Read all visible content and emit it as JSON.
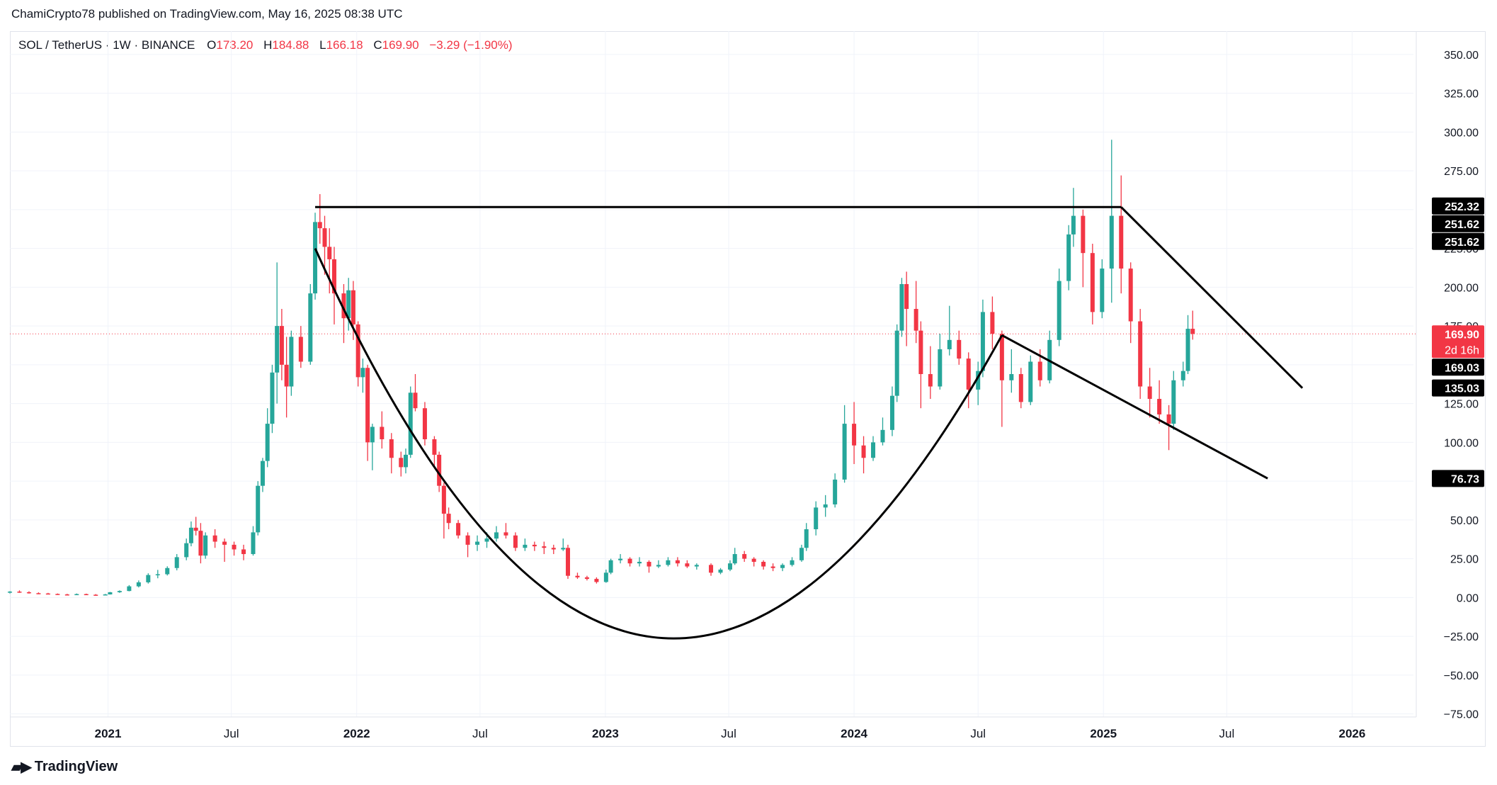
{
  "publisher": "ChamiCrypto78 published on TradingView.com, May 16, 2025 08:38 UTC",
  "legend": {
    "symbol": "SOL / TetherUS · 1W · BINANCE",
    "open_label": "O",
    "open": "173.20",
    "high_label": "H",
    "high": "184.88",
    "low_label": "L",
    "low": "166.18",
    "close_label": "C",
    "close": "169.90",
    "change": "−3.29 (−1.90%)"
  },
  "brand": "TradingView",
  "colors": {
    "up": "#26a69a",
    "down": "#f23645",
    "drawing": "#000000",
    "axis_text": "#131722"
  },
  "chart_data": {
    "type": "candlestick",
    "interval": "1W",
    "yaxis": {
      "ticks": [
        "350.00",
        "325.00",
        "300.00",
        "275.00",
        "250.00",
        "225.00",
        "200.00",
        "175.00",
        "150.00",
        "125.00",
        "100.00",
        "75.00",
        "50.00",
        "25.00",
        "0.00",
        "−25.00",
        "−50.00",
        "−75.00"
      ],
      "range": [
        -77,
        365
      ]
    },
    "xaxis": {
      "ticks": [
        {
          "label": "2021",
          "date": "2021-01-01"
        },
        {
          "label": "Jul",
          "date": "2021-07-01"
        },
        {
          "label": "2022",
          "date": "2022-01-01"
        },
        {
          "label": "Jul",
          "date": "2022-07-01"
        },
        {
          "label": "2023",
          "date": "2023-01-01"
        },
        {
          "label": "Jul",
          "date": "2023-07-01"
        },
        {
          "label": "2024",
          "date": "2024-01-01"
        },
        {
          "label": "Jul",
          "date": "2024-07-01"
        },
        {
          "label": "2025",
          "date": "2025-01-01"
        },
        {
          "label": "Jul",
          "date": "2025-07-01"
        },
        {
          "label": "2026",
          "date": "2026-01-01"
        }
      ],
      "range": [
        "2020-08-10",
        "2026-04-01"
      ]
    },
    "price_tags": [
      {
        "value": 252.32,
        "text": "252.32",
        "color": "#000000"
      },
      {
        "value": 251.62,
        "text": "251.62",
        "color": "#000000"
      },
      {
        "value": 251.62,
        "text": "251.62",
        "color": "#000000"
      },
      {
        "value": 169.9,
        "text": "169.90",
        "sub": "2d 16h",
        "color": "#f23645"
      },
      {
        "value": 169.03,
        "text": "169.03",
        "color": "#000000"
      },
      {
        "value": 135.03,
        "text": "135.03",
        "color": "#000000"
      },
      {
        "value": 76.73,
        "text": "76.73",
        "color": "#000000"
      }
    ],
    "current_price": 169.9,
    "candles": [
      [
        "2020-08-10",
        3.2,
        4.1,
        2.6,
        3.8
      ],
      [
        "2020-08-24",
        3.8,
        4.6,
        3.0,
        3.4
      ],
      [
        "2020-09-07",
        3.4,
        4.0,
        2.5,
        2.8
      ],
      [
        "2020-09-21",
        2.8,
        3.3,
        2.2,
        2.6
      ],
      [
        "2020-10-05",
        2.6,
        3.0,
        2.1,
        2.3
      ],
      [
        "2020-10-19",
        2.3,
        2.6,
        1.8,
        2.0
      ],
      [
        "2020-11-02",
        2.0,
        2.4,
        1.6,
        1.9
      ],
      [
        "2020-11-16",
        1.9,
        2.6,
        1.7,
        2.2
      ],
      [
        "2020-11-30",
        2.2,
        2.5,
        1.6,
        1.8
      ],
      [
        "2020-12-14",
        1.8,
        2.2,
        1.4,
        1.6
      ],
      [
        "2020-12-28",
        1.6,
        2.3,
        1.4,
        2.0
      ],
      [
        "2021-01-04",
        2.0,
        3.6,
        1.9,
        3.4
      ],
      [
        "2021-01-18",
        3.4,
        4.6,
        3.0,
        4.2
      ],
      [
        "2021-02-01",
        4.2,
        8.0,
        4.0,
        7.2
      ],
      [
        "2021-02-15",
        7.2,
        11.0,
        6.5,
        9.8
      ],
      [
        "2021-03-01",
        9.8,
        15.6,
        9.0,
        14.5
      ],
      [
        "2021-03-15",
        14.5,
        17.8,
        12.4,
        15.0
      ],
      [
        "2021-03-29",
        15.0,
        20.1,
        14.2,
        19.0
      ],
      [
        "2021-04-12",
        19.0,
        28.0,
        17.5,
        26.0
      ],
      [
        "2021-04-26",
        26.0,
        38.0,
        24.0,
        35.0
      ],
      [
        "2021-05-03",
        35.0,
        49.0,
        33.0,
        45.0
      ],
      [
        "2021-05-10",
        45.0,
        52.0,
        40.0,
        43.0
      ],
      [
        "2021-05-17",
        43.0,
        48.0,
        22.0,
        27.0
      ],
      [
        "2021-05-24",
        27.0,
        42.0,
        25.0,
        40.0
      ],
      [
        "2021-06-07",
        40.0,
        44.0,
        32.0,
        36.0
      ],
      [
        "2021-06-21",
        36.0,
        38.0,
        23.0,
        34.0
      ],
      [
        "2021-07-05",
        34.0,
        36.0,
        27.0,
        31.0
      ],
      [
        "2021-07-19",
        31.0,
        34.0,
        24.0,
        28.0
      ],
      [
        "2021-08-02",
        28.0,
        46.0,
        27.0,
        42.0
      ],
      [
        "2021-08-09",
        42.0,
        75.0,
        40.0,
        72.0
      ],
      [
        "2021-08-16",
        72.0,
        90.0,
        68.0,
        88.0
      ],
      [
        "2021-08-23",
        88.0,
        122.0,
        84.0,
        112.0
      ],
      [
        "2021-08-30",
        112.0,
        150.0,
        106.0,
        145.0
      ],
      [
        "2021-09-06",
        145.0,
        216.0,
        125.0,
        175.0
      ],
      [
        "2021-09-13",
        175.0,
        186.0,
        140.0,
        150.0
      ],
      [
        "2021-09-20",
        150.0,
        168.0,
        116.0,
        136.0
      ],
      [
        "2021-09-27",
        136.0,
        172.0,
        130.0,
        168.0
      ],
      [
        "2021-10-11",
        168.0,
        175.0,
        148.0,
        152.0
      ],
      [
        "2021-10-25",
        152.0,
        202.0,
        150.0,
        196.0
      ],
      [
        "2021-11-01",
        196.0,
        248.0,
        192.0,
        242.0
      ],
      [
        "2021-11-08",
        242.0,
        260.0,
        228.0,
        238.0
      ],
      [
        "2021-11-15",
        238.0,
        246.0,
        208.0,
        226.0
      ],
      [
        "2021-11-22",
        226.0,
        238.0,
        196.0,
        218.0
      ],
      [
        "2021-11-29",
        218.0,
        226.0,
        176.0,
        196.0
      ],
      [
        "2021-12-13",
        196.0,
        202.0,
        164.0,
        180.0
      ],
      [
        "2021-12-20",
        180.0,
        206.0,
        172.0,
        198.0
      ],
      [
        "2021-12-27",
        198.0,
        204.0,
        166.0,
        176.0
      ],
      [
        "2022-01-03",
        176.0,
        178.0,
        136.0,
        142.0
      ],
      [
        "2022-01-10",
        142.0,
        154.0,
        132.0,
        148.0
      ],
      [
        "2022-01-17",
        148.0,
        150.0,
        88.0,
        100.0
      ],
      [
        "2022-01-24",
        100.0,
        112.0,
        82.0,
        110.0
      ],
      [
        "2022-02-07",
        110.0,
        120.0,
        96.0,
        102.0
      ],
      [
        "2022-02-21",
        102.0,
        106.0,
        80.0,
        90.0
      ],
      [
        "2022-03-07",
        90.0,
        94.0,
        78.0,
        84.0
      ],
      [
        "2022-03-14",
        84.0,
        96.0,
        80.0,
        92.0
      ],
      [
        "2022-03-21",
        92.0,
        136.0,
        90.0,
        132.0
      ],
      [
        "2022-03-28",
        132.0,
        144.0,
        120.0,
        122.0
      ],
      [
        "2022-04-11",
        122.0,
        126.0,
        98.0,
        102.0
      ],
      [
        "2022-04-25",
        102.0,
        104.0,
        84.0,
        92.0
      ],
      [
        "2022-05-02",
        92.0,
        94.0,
        68.0,
        72.0
      ],
      [
        "2022-05-09",
        72.0,
        74.0,
        38.0,
        54.0
      ],
      [
        "2022-05-16",
        54.0,
        58.0,
        44.0,
        48.0
      ],
      [
        "2022-05-30",
        48.0,
        50.0,
        38.0,
        40.0
      ],
      [
        "2022-06-13",
        40.0,
        42.0,
        26.0,
        34.0
      ],
      [
        "2022-06-27",
        34.0,
        40.0,
        30.0,
        36.0
      ],
      [
        "2022-07-11",
        36.0,
        42.0,
        32.0,
        38.0
      ],
      [
        "2022-07-25",
        38.0,
        46.0,
        36.0,
        42.0
      ],
      [
        "2022-08-08",
        42.0,
        48.0,
        38.0,
        40.0
      ],
      [
        "2022-08-22",
        40.0,
        42.0,
        30.0,
        32.0
      ],
      [
        "2022-09-05",
        32.0,
        38.0,
        30.0,
        34.0
      ],
      [
        "2022-09-19",
        34.0,
        36.0,
        30.0,
        33.0
      ],
      [
        "2022-10-03",
        33.0,
        36.0,
        28.0,
        32.0
      ],
      [
        "2022-10-17",
        32.0,
        34.0,
        28.0,
        31.0
      ],
      [
        "2022-10-31",
        31.0,
        38.0,
        30.0,
        32.0
      ],
      [
        "2022-11-07",
        32.0,
        34.0,
        12.0,
        14.0
      ],
      [
        "2022-11-21",
        14.0,
        16.0,
        12.0,
        13.0
      ],
      [
        "2022-12-05",
        13.0,
        14.0,
        11.0,
        12.0
      ],
      [
        "2022-12-19",
        12.0,
        13.0,
        9.0,
        10.0
      ],
      [
        "2023-01-02",
        10.0,
        18.0,
        9.5,
        16.0
      ],
      [
        "2023-01-09",
        16.0,
        25.0,
        15.0,
        24.0
      ],
      [
        "2023-01-23",
        24.0,
        28.0,
        22.0,
        25.0
      ],
      [
        "2023-02-06",
        25.0,
        26.0,
        20.0,
        22.0
      ],
      [
        "2023-02-20",
        22.0,
        26.0,
        20.0,
        23.0
      ],
      [
        "2023-03-06",
        23.0,
        24.0,
        16.0,
        20.0
      ],
      [
        "2023-03-20",
        20.0,
        24.0,
        19.0,
        21.0
      ],
      [
        "2023-04-03",
        21.0,
        26.0,
        20.0,
        24.0
      ],
      [
        "2023-04-17",
        24.0,
        26.0,
        20.0,
        22.0
      ],
      [
        "2023-05-01",
        22.0,
        24.0,
        19.0,
        20.0
      ],
      [
        "2023-05-15",
        20.0,
        22.0,
        18.0,
        21.0
      ],
      [
        "2023-06-05",
        21.0,
        22.0,
        14.0,
        16.0
      ],
      [
        "2023-06-19",
        16.0,
        19.0,
        15.0,
        18.0
      ],
      [
        "2023-07-03",
        18.0,
        24.0,
        17.0,
        22.0
      ],
      [
        "2023-07-10",
        22.0,
        32.0,
        21.0,
        28.0
      ],
      [
        "2023-07-24",
        28.0,
        30.0,
        23.0,
        25.0
      ],
      [
        "2023-08-07",
        25.0,
        26.0,
        20.0,
        23.0
      ],
      [
        "2023-08-21",
        23.0,
        24.0,
        18.0,
        20.0
      ],
      [
        "2023-09-04",
        20.0,
        22.0,
        17.0,
        19.0
      ],
      [
        "2023-09-18",
        19.0,
        22.0,
        17.0,
        21.0
      ],
      [
        "2023-10-02",
        21.0,
        26.0,
        20.0,
        24.0
      ],
      [
        "2023-10-16",
        24.0,
        34.0,
        23.0,
        32.0
      ],
      [
        "2023-10-23",
        32.0,
        48.0,
        30.0,
        44.0
      ],
      [
        "2023-11-06",
        44.0,
        62.0,
        40.0,
        58.0
      ],
      [
        "2023-11-20",
        58.0,
        66.0,
        52.0,
        60.0
      ],
      [
        "2023-12-04",
        60.0,
        80.0,
        58.0,
        76.0
      ],
      [
        "2023-12-18",
        76.0,
        124.0,
        74.0,
        112.0
      ],
      [
        "2024-01-01",
        112.0,
        126.0,
        86.0,
        98.0
      ],
      [
        "2024-01-15",
        98.0,
        104.0,
        80.0,
        90.0
      ],
      [
        "2024-01-29",
        90.0,
        104.0,
        88.0,
        100.0
      ],
      [
        "2024-02-12",
        100.0,
        116.0,
        98.0,
        108.0
      ],
      [
        "2024-02-26",
        108.0,
        136.0,
        104.0,
        130.0
      ],
      [
        "2024-03-04",
        130.0,
        176.0,
        126.0,
        172.0
      ],
      [
        "2024-03-11",
        172.0,
        206.0,
        168.0,
        202.0
      ],
      [
        "2024-03-18",
        202.0,
        210.0,
        162.0,
        186.0
      ],
      [
        "2024-04-01",
        186.0,
        204.0,
        164.0,
        172.0
      ],
      [
        "2024-04-08",
        172.0,
        178.0,
        122.0,
        144.0
      ],
      [
        "2024-04-22",
        144.0,
        162.0,
        128.0,
        136.0
      ],
      [
        "2024-05-06",
        136.0,
        170.0,
        134.0,
        160.0
      ],
      [
        "2024-05-20",
        160.0,
        188.0,
        156.0,
        166.0
      ],
      [
        "2024-06-03",
        166.0,
        172.0,
        150.0,
        154.0
      ],
      [
        "2024-06-17",
        154.0,
        158.0,
        122.0,
        134.0
      ],
      [
        "2024-07-01",
        134.0,
        152.0,
        124.0,
        146.0
      ],
      [
        "2024-07-08",
        146.0,
        192.0,
        142.0,
        184.0
      ],
      [
        "2024-07-22",
        184.0,
        194.0,
        160.0,
        170.0
      ],
      [
        "2024-08-05",
        170.0,
        172.0,
        110.0,
        140.0
      ],
      [
        "2024-08-19",
        140.0,
        160.0,
        132.0,
        144.0
      ],
      [
        "2024-09-02",
        144.0,
        148.0,
        122.0,
        126.0
      ],
      [
        "2024-09-16",
        126.0,
        156.0,
        124.0,
        152.0
      ],
      [
        "2024-09-30",
        152.0,
        160.0,
        136.0,
        140.0
      ],
      [
        "2024-10-14",
        140.0,
        172.0,
        138.0,
        166.0
      ],
      [
        "2024-10-28",
        166.0,
        212.0,
        162.0,
        204.0
      ],
      [
        "2024-11-11",
        204.0,
        240.0,
        198.0,
        234.0
      ],
      [
        "2024-11-18",
        234.0,
        264.0,
        226.0,
        246.0
      ],
      [
        "2024-12-02",
        246.0,
        250.0,
        200.0,
        222.0
      ],
      [
        "2024-12-16",
        222.0,
        228.0,
        176.0,
        184.0
      ],
      [
        "2024-12-30",
        184.0,
        218.0,
        180.0,
        212.0
      ],
      [
        "2025-01-13",
        212.0,
        295.0,
        190.0,
        246.0
      ],
      [
        "2025-01-27",
        246.0,
        272.0,
        196.0,
        212.0
      ],
      [
        "2025-02-10",
        212.0,
        216.0,
        164.0,
        178.0
      ],
      [
        "2025-02-24",
        178.0,
        186.0,
        128.0,
        136.0
      ],
      [
        "2025-03-10",
        136.0,
        148.0,
        116.0,
        128.0
      ],
      [
        "2025-03-24",
        128.0,
        140.0,
        112.0,
        118.0
      ],
      [
        "2025-04-07",
        118.0,
        124.0,
        95.0,
        112.0
      ],
      [
        "2025-04-14",
        112.0,
        146.0,
        108.0,
        140.0
      ],
      [
        "2025-04-28",
        140.0,
        152.0,
        136.0,
        146.0
      ],
      [
        "2025-05-05",
        146.0,
        182.0,
        144.0,
        173.2
      ],
      [
        "2025-05-12",
        173.2,
        184.88,
        166.18,
        169.9
      ]
    ],
    "drawings": [
      {
        "type": "hline",
        "name": "resistance-line",
        "from": [
          "2021-11-01",
          251.62
        ],
        "to": [
          "2025-01-27",
          251.62
        ]
      },
      {
        "type": "trendline",
        "name": "descending-resistance",
        "from": [
          "2025-01-27",
          251.62
        ],
        "to": [
          "2025-10-20",
          135.03
        ]
      },
      {
        "type": "curve",
        "name": "cup-curve",
        "from": [
          "2021-11-01",
          225.0
        ],
        "control": [
          "2023-03-01",
          -248.0
        ],
        "to": [
          "2024-08-05",
          169.03
        ]
      },
      {
        "type": "trendline",
        "name": "descending-support",
        "from": [
          "2024-08-05",
          169.03
        ],
        "to": [
          "2025-08-30",
          76.73
        ]
      }
    ]
  }
}
